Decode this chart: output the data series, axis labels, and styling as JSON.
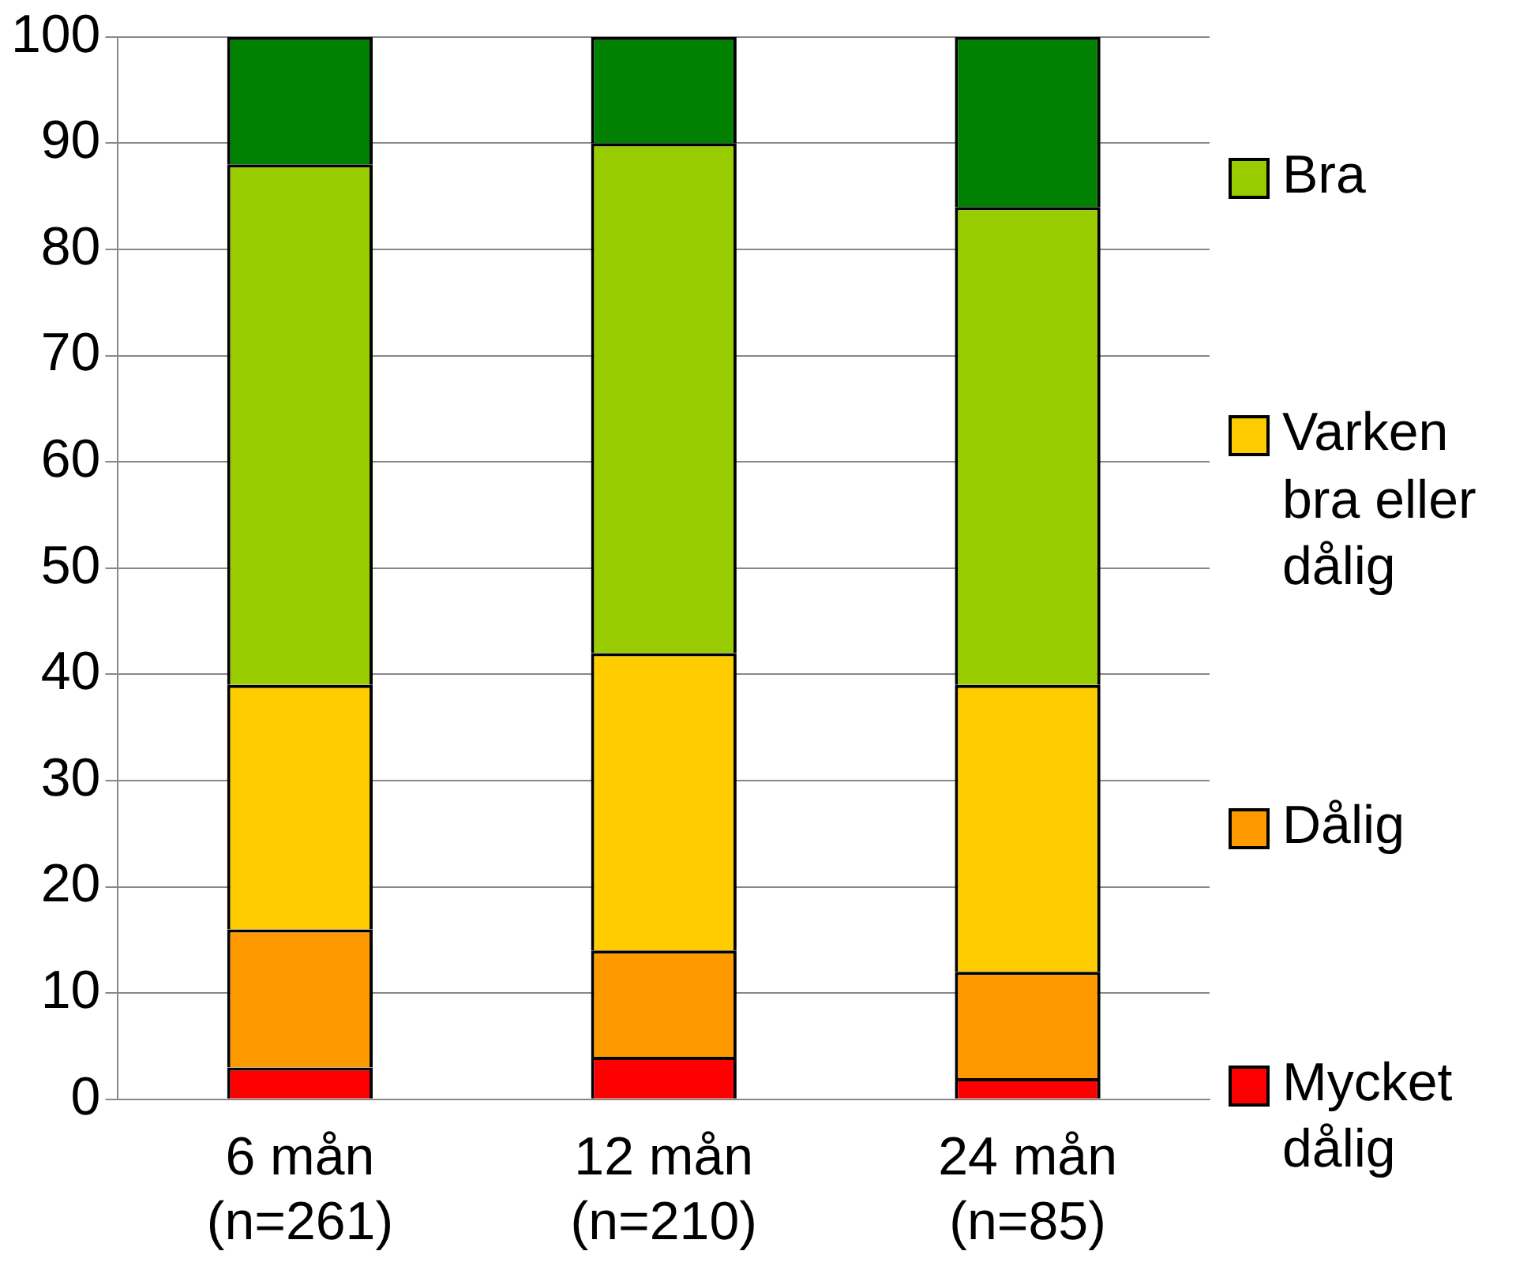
{
  "chart_data": {
    "type": "bar",
    "stacked": true,
    "categories": [
      "6 mån (n=261)",
      "12 mån (n=210)",
      "24 mån (n=85)"
    ],
    "series": [
      {
        "name": "Mycket dålig",
        "color": "#ff0000",
        "values": [
          3,
          4,
          2
        ]
      },
      {
        "name": "Dålig",
        "color": "#ff9900",
        "values": [
          13,
          10,
          10
        ]
      },
      {
        "name": "Varken bra eller dålig",
        "color": "#ffcc00",
        "values": [
          23,
          28,
          27
        ]
      },
      {
        "name": "Bra",
        "color": "#99cc00",
        "values": [
          49,
          48,
          45
        ]
      },
      {
        "color": "#008000",
        "values": [
          12,
          10,
          16
        ]
      }
    ],
    "ylim": [
      0,
      100
    ],
    "yticks": [
      0,
      10,
      20,
      30,
      40,
      50,
      60,
      70,
      80,
      90,
      100
    ],
    "grid": "y",
    "legend": "right"
  }
}
